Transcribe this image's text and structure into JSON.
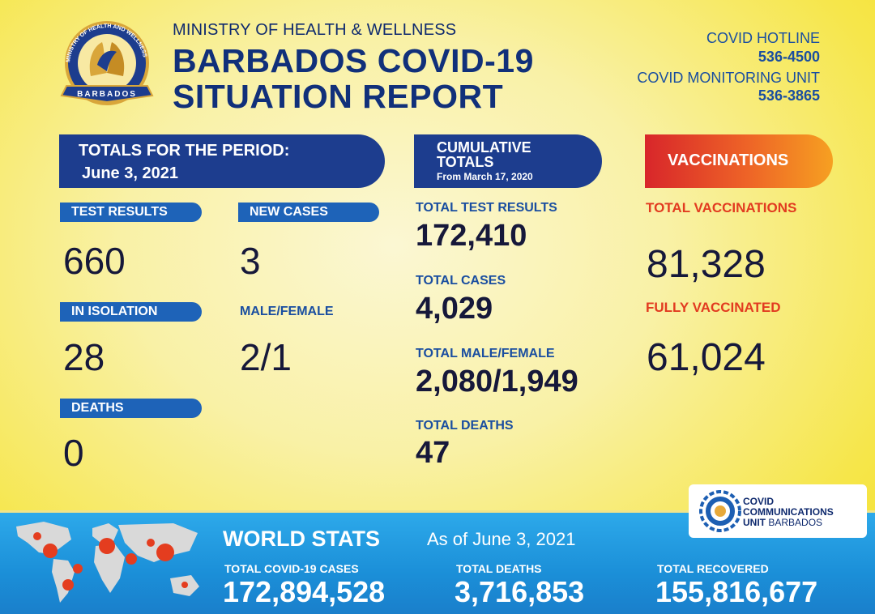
{
  "header": {
    "ministry": "MINISTRY OF HEALTH & WELLNESS",
    "title_line1": "BARBADOS COVID-19",
    "title_line2": "SITUATION REPORT",
    "logo_text_top": "MINISTRY OF HEALTH AND WELLNESS",
    "logo_text_bottom": "BARBADOS"
  },
  "hotline": {
    "label": "COVID HOTLINE",
    "number": "536-4500",
    "monitoring_label": "COVID MONITORING UNIT",
    "monitoring_number": "536-3865"
  },
  "period": {
    "heading": "TOTALS FOR THE PERIOD:",
    "date": "June 3, 2021",
    "test_results_label": "TEST RESULTS",
    "test_results": "660",
    "new_cases_label": "NEW CASES",
    "new_cases": "3",
    "isolation_label": "IN ISOLATION",
    "isolation": "28",
    "male_female_label": "MALE/FEMALE",
    "male_female": "2/1",
    "deaths_label": "DEATHS",
    "deaths": "0"
  },
  "cumulative": {
    "heading1": "CUMULATIVE",
    "heading2": "TOTALS",
    "since": "From March 17, 2020",
    "tests_label": "TOTAL TEST RESULTS",
    "tests": "172,410",
    "cases_label": "TOTAL CASES",
    "cases": "4,029",
    "mf_label": "TOTAL MALE/FEMALE",
    "mf": "2,080/1,949",
    "deaths_label": "TOTAL DEATHS",
    "deaths": "47"
  },
  "vaccinations": {
    "heading": "VACCINATIONS",
    "total_label": "TOTAL VACCINATIONS",
    "total": "81,328",
    "fully_label": "FULLY VACCINATED",
    "fully": "61,024"
  },
  "ccu": {
    "line1": "COVID",
    "line2": "COMMUNICATIONS",
    "line3a": "UNIT",
    "line3b": "BARBADOS"
  },
  "world": {
    "title": "WORLD STATS",
    "as_of": "As of June 3, 2021",
    "cases_label": "TOTAL COVID-19 CASES",
    "cases": "172,894,528",
    "deaths_label": "TOTAL DEATHS",
    "deaths": "3,716,853",
    "recovered_label": "TOTAL RECOVERED",
    "recovered": "155,816,677"
  },
  "colors": {
    "navy": "#1d3d8e",
    "pill_blue": "#1e63b8",
    "vax_red": "#e23b20",
    "world_blue": "#1b8fd8"
  }
}
